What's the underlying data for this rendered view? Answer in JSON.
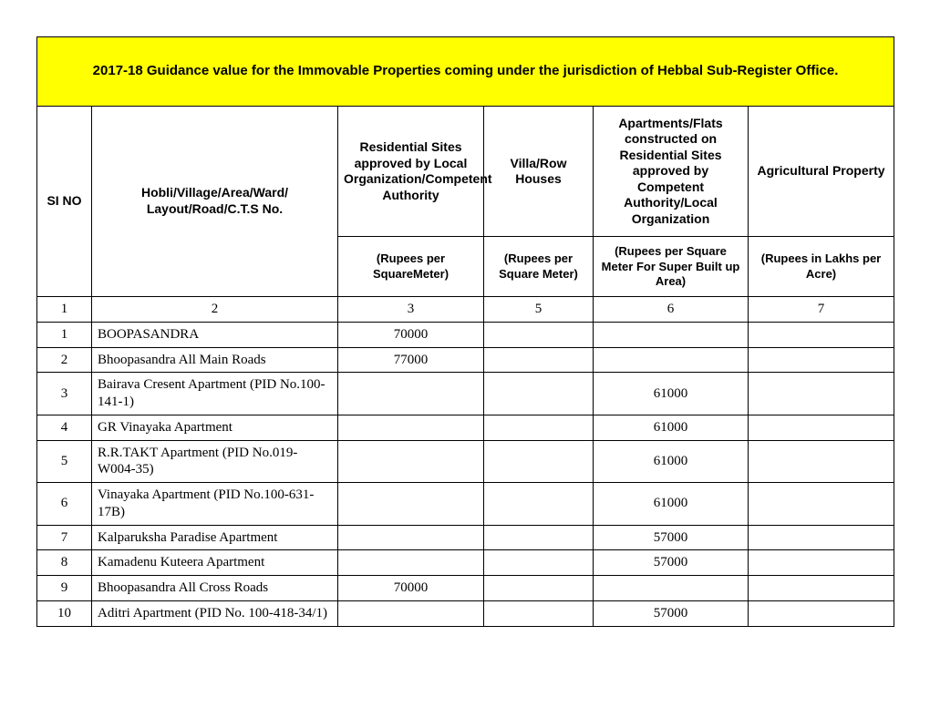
{
  "title": "2017-18 Guidance value for the Immovable Properties coming under the jurisdiction of Hebbal Sub-Register Office.",
  "headers": {
    "si_no": "SI NO",
    "location": "Hobli/Village/Area/Ward/ Layout/Road/C.T.S No.",
    "residential": "Residential Sites approved by Local Organization/Competent Authority",
    "villa": "Villa/Row Houses",
    "apartments": "Apartments/Flats constructed on Residential  Sites approved by Competent Authority/Local Organization",
    "agri": "Agricultural Property"
  },
  "units": {
    "residential": "(Rupees per SquareMeter)",
    "villa": "(Rupees per Square Meter)",
    "apartments": "(Rupees per Square Meter For Super Built up Area)",
    "agri": "(Rupees in Lakhs per Acre)"
  },
  "colnums": {
    "c1": "1",
    "c2": "2",
    "c3": "3",
    "c4": "5",
    "c5": "6",
    "c6": "7"
  },
  "rows": [
    {
      "si": "1",
      "name": "BOOPASANDRA",
      "res": "70000",
      "villa": "",
      "apt": "",
      "agri": ""
    },
    {
      "si": "2",
      "name": "Bhoopasandra All Main Roads",
      "res": "77000",
      "villa": "",
      "apt": "",
      "agri": ""
    },
    {
      "si": "3",
      "name": "Bairava Cresent  Apartment  (PID No.100-141-1)",
      "res": "",
      "villa": "",
      "apt": "61000",
      "agri": ""
    },
    {
      "si": "4",
      "name": "GR Vinayaka Apartment",
      "res": "",
      "villa": "",
      "apt": "61000",
      "agri": ""
    },
    {
      "si": "5",
      "name": "R.R.TAKT  Apartment (PID No.019-W004-35)",
      "res": "",
      "villa": "",
      "apt": "61000",
      "agri": ""
    },
    {
      "si": "6",
      "name": "Vinayaka Apartment (PID No.100-631-17B)",
      "res": "",
      "villa": "",
      "apt": "61000",
      "agri": ""
    },
    {
      "si": "7",
      "name": "Kalparuksha Paradise  Apartment",
      "res": "",
      "villa": "",
      "apt": "57000",
      "agri": ""
    },
    {
      "si": "8",
      "name": "Kamadenu Kuteera  Apartment",
      "res": "",
      "villa": "",
      "apt": "57000",
      "agri": ""
    },
    {
      "si": "9",
      "name": "Bhoopasandra All Cross Roads",
      "res": "70000",
      "villa": "",
      "apt": "",
      "agri": ""
    },
    {
      "si": "10",
      "name": "Aditri Apartment (PID No. 100-418-34/1)",
      "res": "",
      "villa": "",
      "apt": "57000",
      "agri": ""
    }
  ]
}
